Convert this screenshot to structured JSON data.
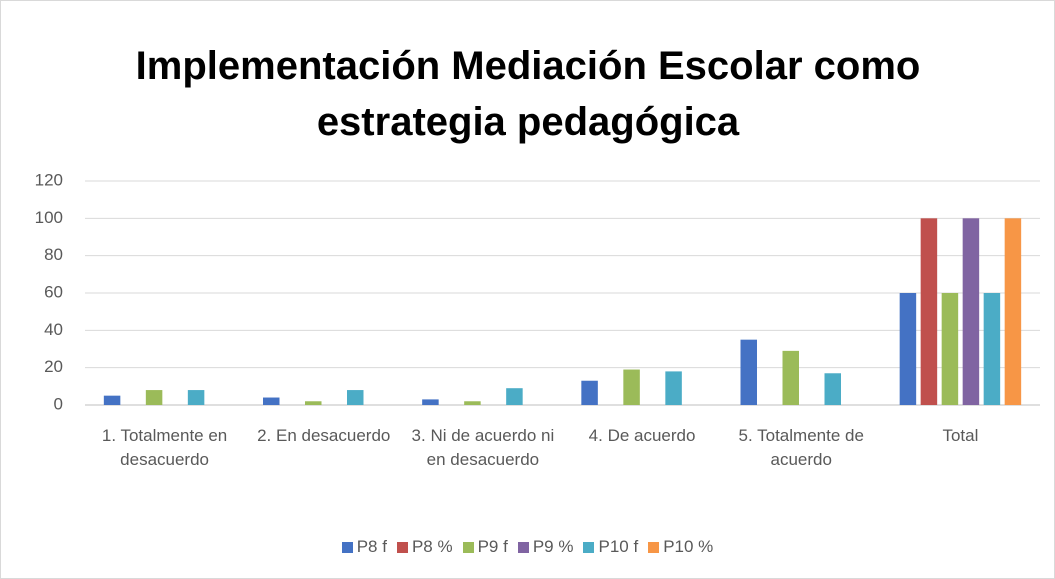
{
  "chart_data": {
    "type": "bar",
    "title": "Implementación Mediación Escolar como estrategia pedagógica",
    "categories": [
      "1. Totalmente en desacuerdo",
      "2. En desacuerdo",
      "3. Ni de acuerdo ni en desacuerdo",
      "4. De acuerdo",
      "5. Totalmente de acuerdo",
      "Total"
    ],
    "series": [
      {
        "name": "P8 f",
        "color": "#4472c4",
        "values": [
          5,
          4,
          3,
          13,
          35,
          60
        ]
      },
      {
        "name": "P8 %",
        "color": "#c0504d",
        "values": [
          null,
          null,
          null,
          null,
          null,
          100
        ]
      },
      {
        "name": "P9 f",
        "color": "#9bbb59",
        "values": [
          8,
          2,
          2,
          19,
          29,
          60
        ]
      },
      {
        "name": "P9 %",
        "color": "#8064a2",
        "values": [
          null,
          null,
          null,
          null,
          null,
          100
        ]
      },
      {
        "name": "P10 f",
        "color": "#4bacc6",
        "values": [
          8,
          8,
          9,
          18,
          17,
          60
        ]
      },
      {
        "name": "P10 %",
        "color": "#f79646",
        "values": [
          null,
          null,
          null,
          null,
          null,
          100
        ]
      }
    ],
    "ylim": [
      0,
      120
    ],
    "yticks": [
      0,
      20,
      40,
      60,
      80,
      100,
      120
    ],
    "grid": true,
    "legend": "bottom"
  }
}
